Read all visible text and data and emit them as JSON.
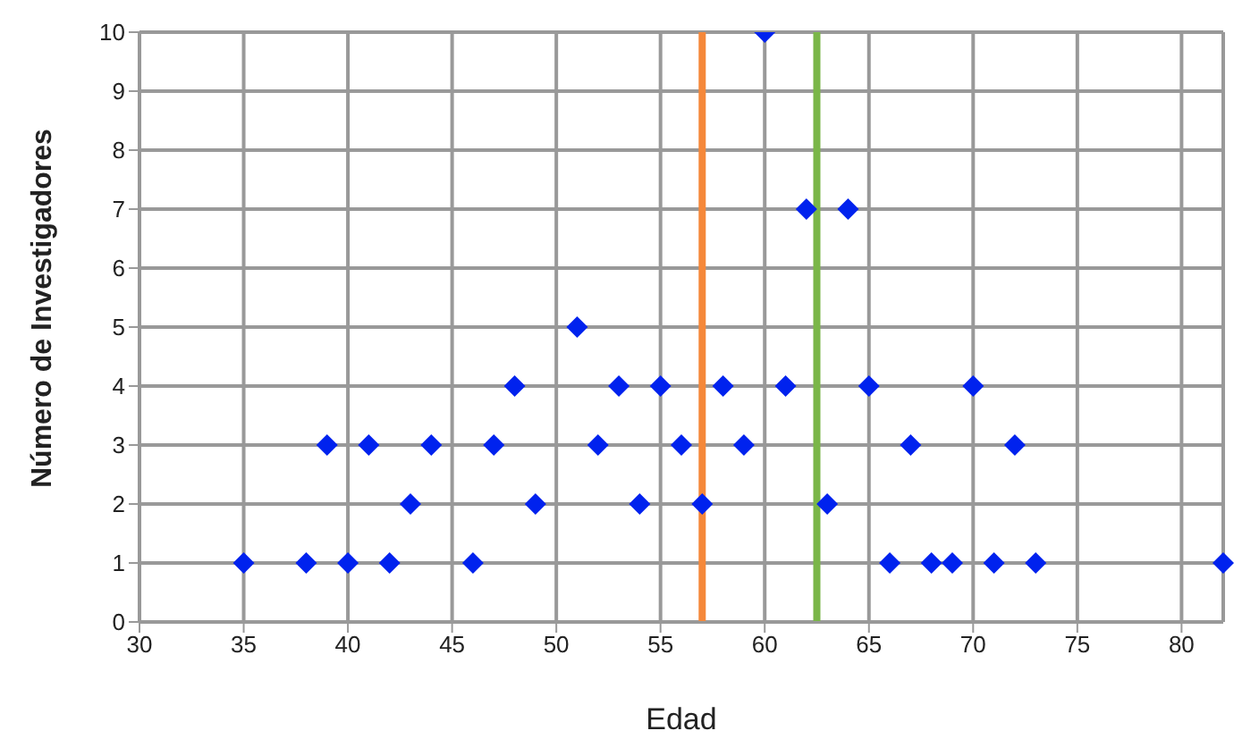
{
  "chart_data": {
    "type": "scatter",
    "xlabel": "Edad",
    "ylabel": "Número de Investigadores",
    "x": [
      35,
      38,
      40,
      42,
      46,
      66,
      68,
      69,
      71,
      73,
      82,
      43,
      49,
      54,
      57,
      63,
      39,
      41,
      44,
      47,
      52,
      56,
      59,
      67,
      72,
      48,
      53,
      55,
      58,
      61,
      65,
      70,
      51,
      62,
      64,
      60
    ],
    "series": [
      {
        "color": "#0022ee",
        "values": [
          1,
          1,
          1,
          1,
          1,
          1,
          1,
          1,
          1,
          1,
          1,
          2,
          2,
          2,
          2,
          2,
          3,
          3,
          3,
          3,
          3,
          3,
          3,
          3,
          3,
          4,
          4,
          4,
          4,
          4,
          4,
          4,
          5,
          7,
          7,
          10
        ]
      }
    ],
    "xlim": [
      30,
      82
    ],
    "xticks": [
      30,
      35,
      40,
      45,
      50,
      55,
      60,
      65,
      70,
      75,
      80
    ],
    "ylim": [
      0,
      10
    ],
    "yticks": [
      0,
      1,
      2,
      3,
      4,
      5,
      6,
      7,
      8,
      9,
      10
    ],
    "grid": true,
    "marker": "diamond",
    "legend": false,
    "ref_lines": [
      {
        "axis": "x",
        "value": 57,
        "color": "#f5883a"
      },
      {
        "axis": "x",
        "value": 62.5,
        "color": "#7ab648"
      }
    ]
  }
}
